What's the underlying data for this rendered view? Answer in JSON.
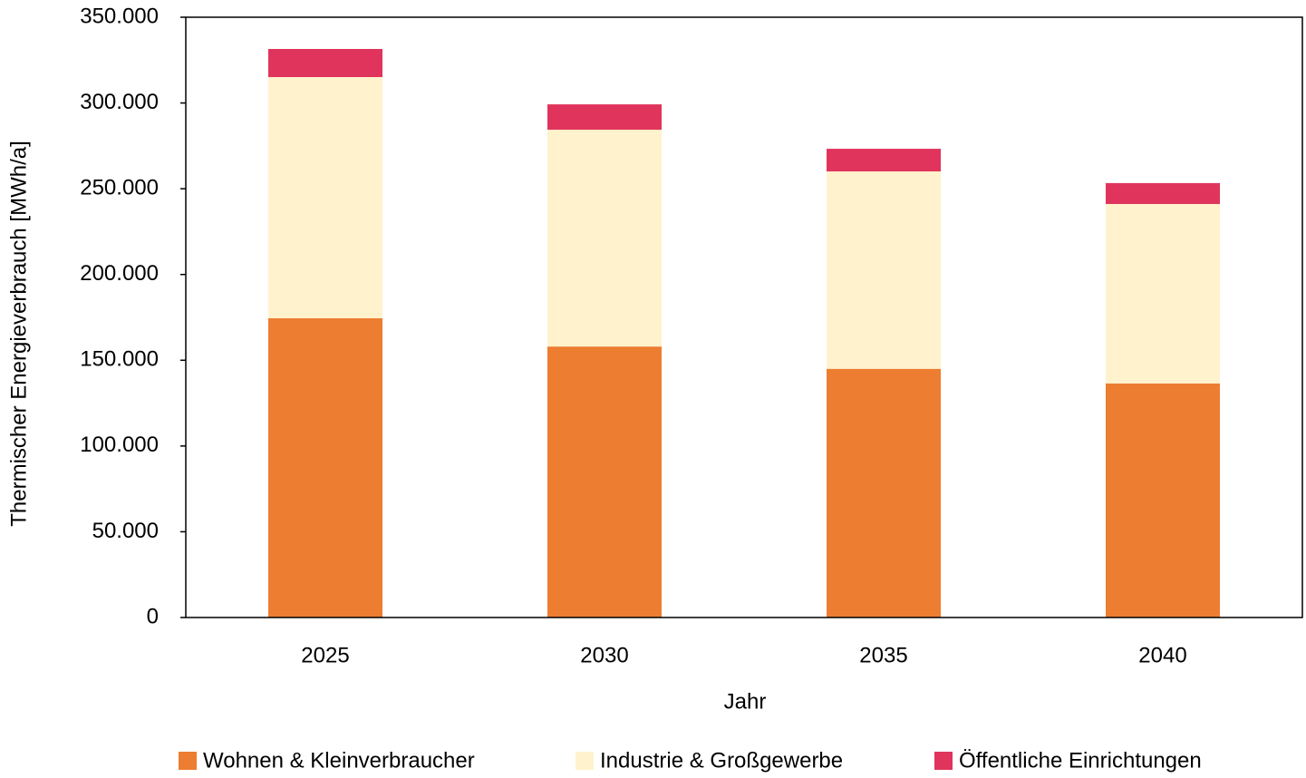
{
  "chart_data": {
    "type": "stacked_bar",
    "x_label": "Jahr",
    "y_label": "Thermischer Energieverbrauch [MWh/a]",
    "categories": [
      "2025",
      "2030",
      "2035",
      "2040"
    ],
    "series": [
      {
        "name": "Wohnen & Kleinverbraucher",
        "color": "#ed7d31",
        "values": [
          174500,
          158000,
          145000,
          136500
        ]
      },
      {
        "name": "Industrie & Großgewerbe",
        "color": "#fff2cc",
        "values": [
          140600,
          126400,
          115100,
          104600
        ]
      },
      {
        "name": "Öffentliche Einrichtungen",
        "color": "#e0345c",
        "values": [
          16400,
          14800,
          13200,
          12200
        ]
      }
    ],
    "ylim": [
      0,
      350000
    ],
    "yticks": [
      0,
      {
        "value": 50000,
        "label": "50.000"
      },
      {
        "value": 100000,
        "label": "100.000"
      },
      {
        "value": 150000,
        "label": "150.000"
      },
      {
        "value": 200000,
        "label": "200.000"
      },
      {
        "value": 250000,
        "label": "250.000"
      },
      {
        "value": 300000,
        "label": "300.000"
      },
      {
        "value": 350000,
        "label": "350.000"
      }
    ],
    "legend": "bottom"
  }
}
